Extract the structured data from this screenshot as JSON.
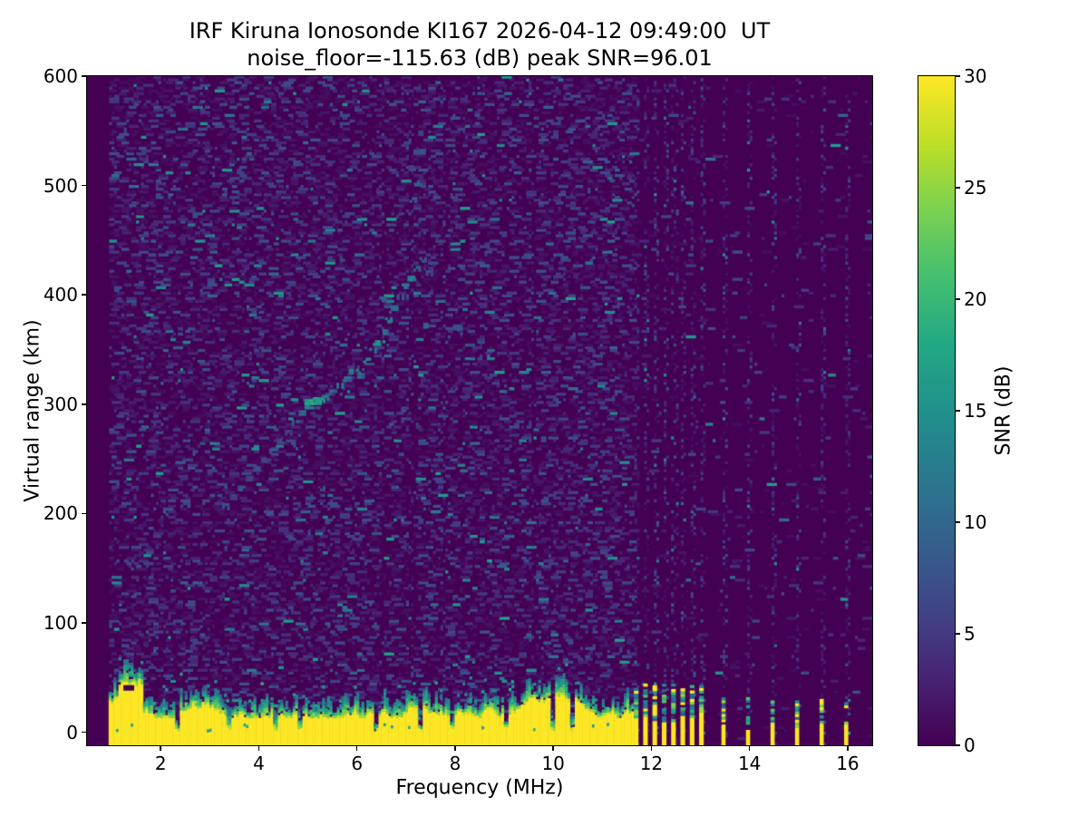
{
  "chart_data": {
    "type": "heatmap",
    "title": "IRF Kiruna Ionosonde KI167 2026-04-12 09:49:00  UT",
    "subtitle": "noise_floor=-115.63 (dB) peak SNR=96.01",
    "xlabel": "Frequency (MHz)",
    "ylabel": "Virtual range (km)",
    "xlim": [
      0.5,
      16.5
    ],
    "ylim": [
      -12,
      600
    ],
    "xticks": [
      2,
      4,
      6,
      8,
      10,
      12,
      14,
      16
    ],
    "yticks": [
      0,
      100,
      200,
      300,
      400,
      500,
      600
    ],
    "colorbar": {
      "label": "SNR (dB)",
      "min": 0,
      "max": 30,
      "ticks": [
        0,
        5,
        10,
        15,
        20,
        25,
        30
      ],
      "colormap": "viridis"
    },
    "colormap_stops": [
      "#440154",
      "#482475",
      "#414487",
      "#355f8d",
      "#2a788e",
      "#21918c",
      "#22a884",
      "#44bf70",
      "#7ad151",
      "#bddf26",
      "#fde725"
    ],
    "noise_floor_db": -115.63,
    "peak_snr_db": 96.01,
    "render": {
      "seed": 1167,
      "grid": {
        "df": 0.05,
        "dkm": 2.5
      },
      "empty_below_f": 0.94,
      "noise": {
        "regions": [
          {
            "f0": 0.94,
            "f1": 11.66,
            "p": 0.3
          },
          {
            "f0": 11.66,
            "f1": 13.12,
            "p": 0.035
          },
          {
            "f0": 13.12,
            "f1": 16.5,
            "p": 0.018
          }
        ],
        "v_scale": 6.5,
        "hot_p": 0.045,
        "hot_lo": 8,
        "hot_range": 9,
        "dash_max_cells": 4
      },
      "noise_columns": [
        {
          "f": 6.48,
          "w": 0.1,
          "p": 0.22
        },
        {
          "f": 7.05,
          "w": 0.12,
          "p": 0.34
        },
        {
          "f": 7.72,
          "w": 0.1,
          "p": 0.3
        },
        {
          "f": 9.52,
          "w": 0.08,
          "p": 0.15
        }
      ],
      "ground_band": {
        "f0": 0.94,
        "f1": 11.62,
        "top_start": 28,
        "top_min": 13,
        "top_max": 34,
        "walk": 9,
        "trans_min": 4,
        "trans_max": 18,
        "tall_segments": [
          {
            "f0": 1.12,
            "f1": 1.62,
            "top": 44
          }
        ],
        "gaps": [
          2.33,
          3.35,
          4.3,
          4.82,
          6.37,
          7.27,
          7.9,
          9.0,
          9.97,
          10.37
        ],
        "gap_w": 0.1,
        "gap_top": 5
      },
      "rfi_dense": {
        "freqs": [
          11.69,
          11.88,
          12.07,
          12.26,
          12.45,
          12.64,
          12.83,
          13.02
        ],
        "w": 0.095,
        "solid_top_lo": 6,
        "solid_top_hi": 16,
        "dash_top": 42,
        "col_p": 0.3
      },
      "rfi_sparse": {
        "freqs": [
          13.47,
          13.97,
          14.47,
          14.97,
          15.47,
          15.97
        ],
        "w": 0.085,
        "solid_top_lo": 2,
        "solid_top_hi": 10,
        "dash_top": 30,
        "col_p": 0.26
      },
      "trace_points": [
        [
          3.3,
          207,
          7,
          1
        ],
        [
          3.46,
          215,
          6,
          1
        ],
        [
          3.62,
          223,
          8,
          1
        ],
        [
          3.78,
          232,
          6,
          1
        ],
        [
          3.94,
          241,
          7,
          1
        ],
        [
          4.1,
          249,
          6,
          1
        ],
        [
          4.26,
          257,
          8,
          1
        ],
        [
          4.42,
          266,
          7,
          1
        ],
        [
          4.58,
          274,
          6,
          1
        ],
        [
          4.72,
          283,
          9,
          1
        ],
        [
          4.86,
          292,
          10,
          1
        ],
        [
          4.98,
          298,
          13,
          2
        ],
        [
          5.08,
          302,
          19,
          3
        ],
        [
          5.2,
          304,
          17,
          2
        ],
        [
          5.33,
          306,
          13,
          1
        ],
        [
          5.48,
          311,
          11,
          1
        ],
        [
          5.63,
          317,
          13,
          1
        ],
        [
          5.78,
          323,
          11,
          1
        ],
        [
          5.93,
          330,
          14,
          2
        ],
        [
          6.05,
          326,
          10,
          1
        ],
        [
          6.18,
          340,
          15,
          1
        ],
        [
          6.3,
          349,
          12,
          1
        ],
        [
          6.42,
          356,
          16,
          2
        ],
        [
          6.52,
          366,
          11,
          1
        ],
        [
          6.62,
          377,
          13,
          1
        ],
        [
          6.74,
          388,
          11,
          1
        ],
        [
          6.86,
          398,
          9,
          1
        ],
        [
          6.96,
          408,
          12,
          1
        ],
        [
          7.08,
          415,
          14,
          1
        ],
        [
          7.2,
          424,
          10,
          1
        ],
        [
          7.32,
          432,
          8,
          1
        ],
        [
          7.12,
          487,
          9,
          1
        ],
        [
          7.22,
          502,
          10,
          1
        ],
        [
          7.1,
          516,
          7,
          1
        ],
        [
          7.3,
          531,
          8,
          1
        ],
        [
          6.5,
          396,
          9,
          1
        ],
        [
          7.4,
          372,
          10,
          1
        ],
        [
          7.45,
          420,
          7,
          1
        ],
        [
          8.05,
          370,
          8,
          1
        ]
      ],
      "dark_notches": [
        [
          1.35,
          38,
          0.22,
          5
        ]
      ]
    }
  }
}
